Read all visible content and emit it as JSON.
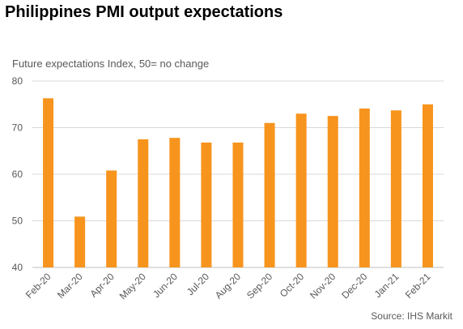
{
  "title": "Philippines PMI output expectations",
  "subtitle": "Future expectations Index, 50= no change",
  "source": "Source: IHS Markit",
  "chart_data": {
    "type": "bar",
    "title": "Philippines PMI output expectations",
    "subtitle": "Future expectations Index, 50= no change",
    "xlabel": "",
    "ylabel": "",
    "categories": [
      "Feb-20",
      "Mar-20",
      "Apr-20",
      "May-20",
      "Jun-20",
      "Jul-20",
      "Aug-20",
      "Sep-20",
      "Oct-20",
      "Nov-20",
      "Dec-20",
      "Jan-21",
      "Feb-21"
    ],
    "values": [
      76.3,
      50.9,
      60.8,
      67.5,
      67.8,
      66.8,
      66.8,
      71.0,
      73.0,
      72.5,
      74.1,
      73.7,
      75.0
    ],
    "ylim": [
      40,
      80
    ],
    "yticks": [
      40,
      50,
      60,
      70,
      80
    ],
    "grid": true,
    "bar_color": "#F7941D",
    "grid_color": "#D9D9D9"
  }
}
